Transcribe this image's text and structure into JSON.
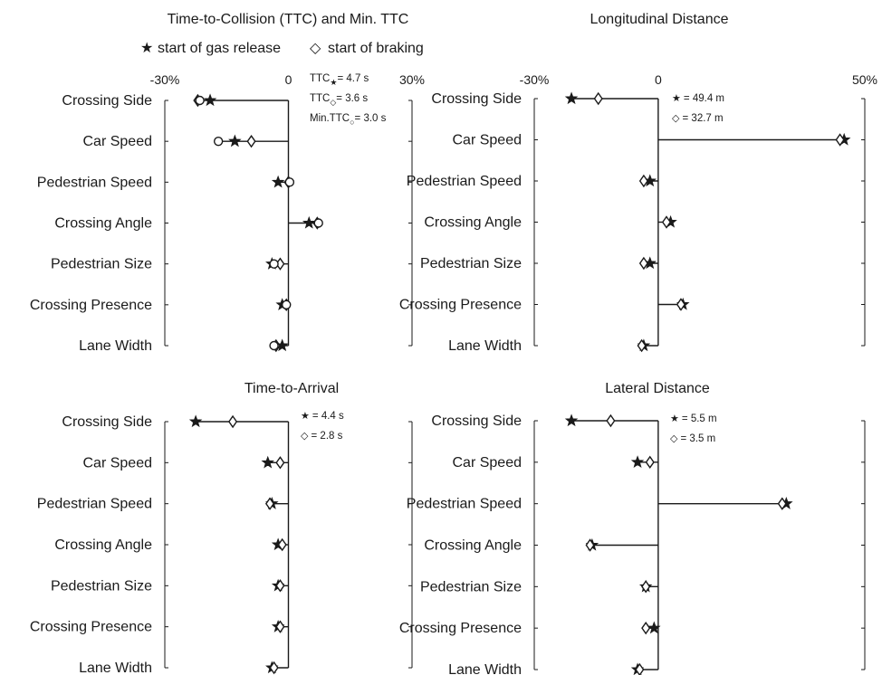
{
  "legend": {
    "gas": {
      "glyph": "★",
      "label": "start of gas release"
    },
    "brake": {
      "glyph": "◇",
      "label": "start of braking"
    }
  },
  "chart_data": [
    {
      "type": "scatter",
      "title": "Time-to-Collision (TTC) and Min. TTC",
      "xlim": [
        -30,
        30
      ],
      "xticks": [
        "-30%",
        "0",
        "30%"
      ],
      "categories": [
        "Crossing Side",
        "Car Speed",
        "Pedestrian Speed",
        "Crossing Angle",
        "Pedestrian Size",
        "Crossing Presence",
        "Lane Width"
      ],
      "series": [
        {
          "marker": "star",
          "values": [
            -19,
            -13,
            -2.5,
            5,
            -4,
            -1.5,
            -1.5
          ]
        },
        {
          "marker": "diamond",
          "values": [
            -22,
            -9,
            0,
            7,
            -2,
            -0.5,
            -3
          ]
        },
        {
          "marker": "circle",
          "values": [
            -21.5,
            -17,
            0.3,
            7.3,
            -3.5,
            -0.5,
            -3.5
          ]
        }
      ],
      "annotations": [
        {
          "pre": "TTC",
          "sub": "★",
          "post": "= 4.7 s"
        },
        {
          "pre": "TTC",
          "sub": "◇",
          "post": "= 3.6 s"
        },
        {
          "pre": "Min.TTC",
          "sub": "○",
          "post": "= 3.0 s"
        }
      ]
    },
    {
      "type": "scatter",
      "title": "Longitudinal Distance",
      "xlim": [
        -30,
        50
      ],
      "xticks": [
        "-30%",
        "0",
        "50%"
      ],
      "categories": [
        "Crossing Side",
        "Car Speed",
        "Pedestrian Speed",
        "Crossing Angle",
        "Pedestrian Size",
        "Crossing Presence",
        "Lane Width"
      ],
      "series": [
        {
          "marker": "star",
          "values": [
            -21,
            45,
            -2,
            3,
            -2,
            6,
            -3.5
          ]
        },
        {
          "marker": "diamond",
          "values": [
            -14.5,
            44,
            -3.5,
            2,
            -3.5,
            5.5,
            -4
          ]
        }
      ],
      "annotations": [
        {
          "pre": "",
          "sub": "★",
          "post": "= 49.4 m"
        },
        {
          "pre": "",
          "sub": "◇",
          "post": "= 32.7 m"
        }
      ]
    },
    {
      "type": "scatter",
      "title": "Time-to-Arrival",
      "xlim": [
        -30,
        30
      ],
      "xticks": [],
      "categories": [
        "Crossing Side",
        "Car Speed",
        "Pedestrian Speed",
        "Crossing Angle",
        "Pedestrian Size",
        "Crossing Presence",
        "Lane Width"
      ],
      "series": [
        {
          "marker": "star",
          "values": [
            -22.5,
            -5,
            -4,
            -2.5,
            -2.5,
            -2.5,
            -4
          ]
        },
        {
          "marker": "diamond",
          "values": [
            -13.5,
            -2,
            -4.5,
            -1.5,
            -2,
            -2,
            -3.5
          ]
        }
      ],
      "annotations": [
        {
          "pre": "",
          "sub": "★",
          "post": "= 4.4 s"
        },
        {
          "pre": "",
          "sub": "◇",
          "post": "= 2.8 s"
        }
      ]
    },
    {
      "type": "scatter",
      "title": "Lateral Distance",
      "xlim": [
        -30,
        50
      ],
      "xticks": [],
      "categories": [
        "Crossing Side",
        "Car Speed",
        "Pedestrian Speed",
        "Crossing Angle",
        "Pedestrian Size",
        "Crossing Presence",
        "Lane Width"
      ],
      "series": [
        {
          "marker": "star",
          "values": [
            -21,
            -5,
            31,
            -16,
            -3,
            -1,
            -5
          ]
        },
        {
          "marker": "diamond",
          "values": [
            -11.5,
            -2,
            30,
            -16.5,
            -3,
            -3,
            -4.5
          ]
        }
      ],
      "annotations": [
        {
          "pre": "",
          "sub": "★",
          "post": "= 5.5 m"
        },
        {
          "pre": "",
          "sub": "◇",
          "post": "= 3.5 m"
        }
      ]
    }
  ]
}
